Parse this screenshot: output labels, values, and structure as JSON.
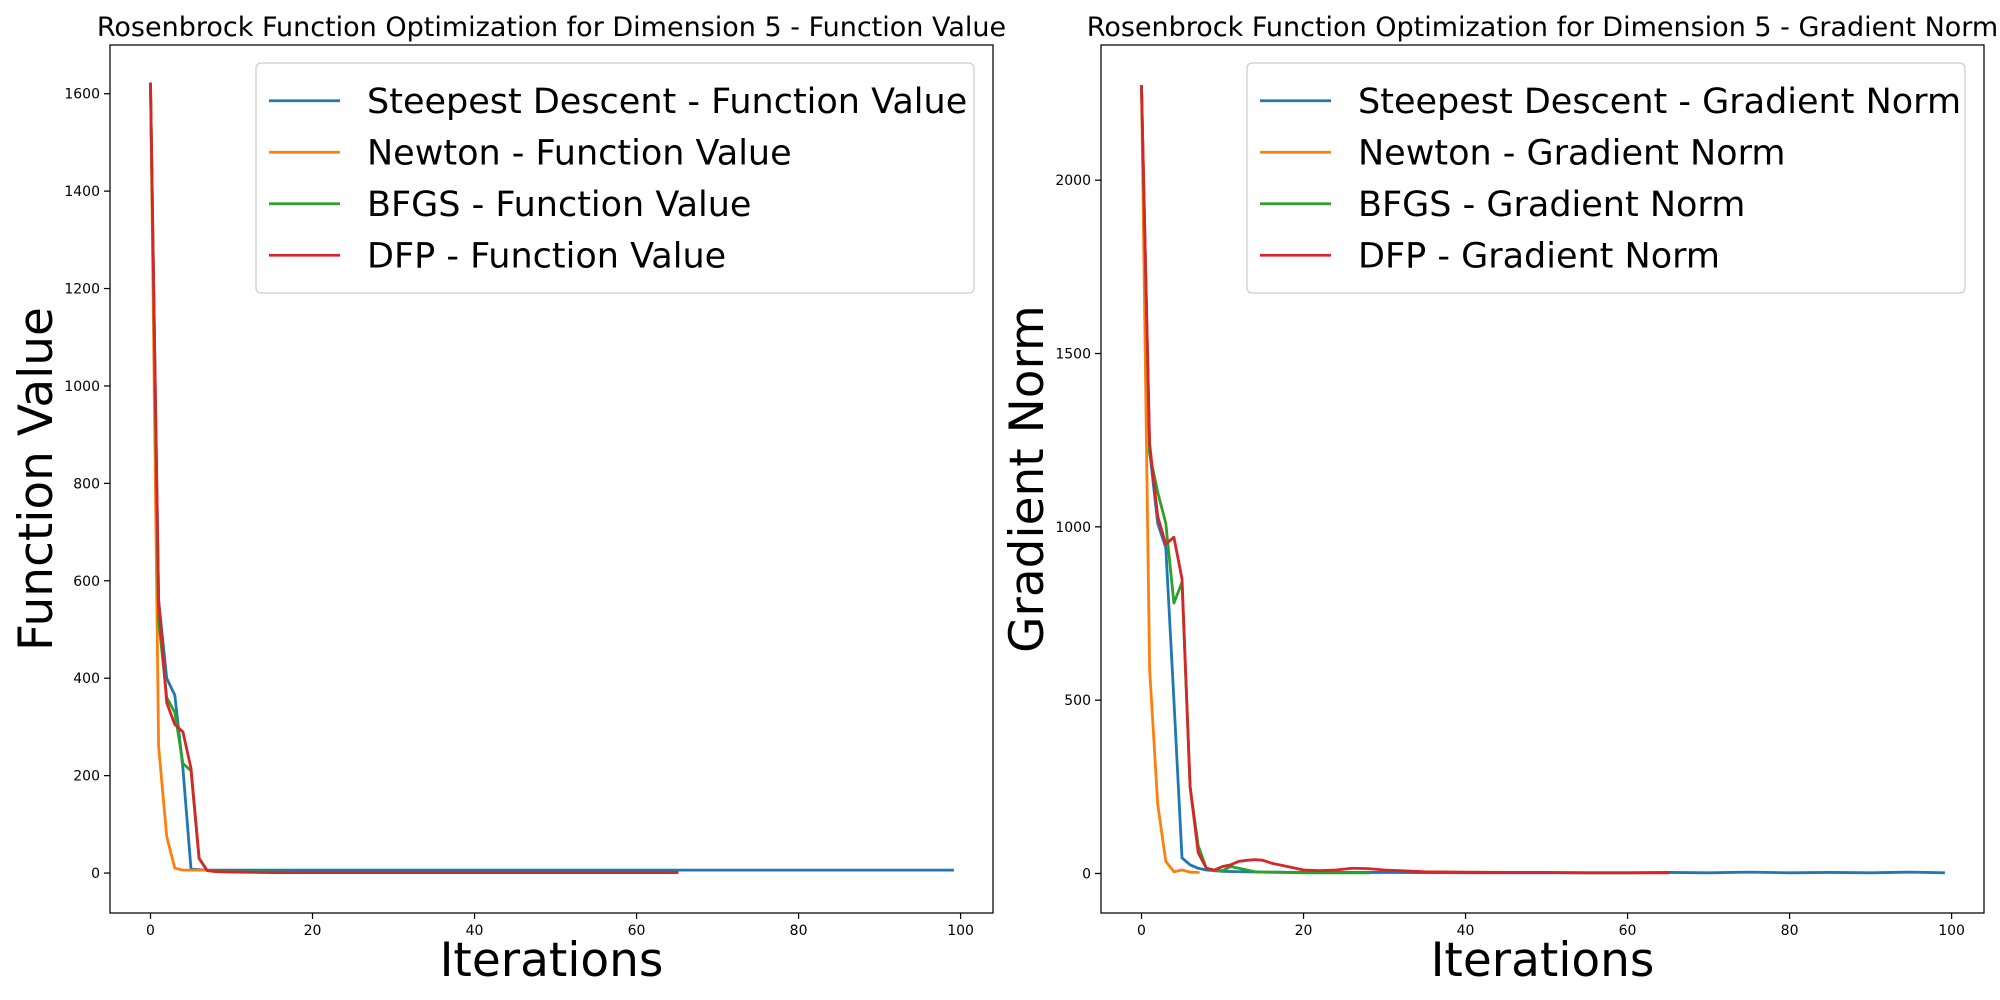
{
  "chart_data": [
    {
      "type": "line",
      "title": "Rosenbrock Function Optimization for Dimension 5 - Function Value",
      "xlabel": "Iterations",
      "ylabel": "Function Value",
      "xlim": [
        -5,
        104
      ],
      "ylim": [
        -82,
        1700
      ],
      "xticks": [
        0,
        20,
        40,
        60,
        80,
        100
      ],
      "yticks": [
        0,
        200,
        400,
        600,
        800,
        1000,
        1200,
        1400,
        1600
      ],
      "grid": false,
      "legend_position": "top-right",
      "series": [
        {
          "name": "Steepest Descent - Function Value",
          "color": "#1f77b4",
          "x": [
            0,
            1,
            2,
            3,
            4,
            5,
            6,
            7,
            8,
            10,
            20,
            40,
            60,
            80,
            99
          ],
          "y": [
            1620,
            560,
            400,
            365,
            215,
            8,
            7,
            6,
            6,
            6,
            6,
            6,
            6,
            6,
            6
          ]
        },
        {
          "name": "Newton - Function Value",
          "color": "#ff7f0e",
          "x": [
            0,
            1,
            2,
            3,
            4,
            5,
            6,
            7
          ],
          "y": [
            1620,
            260,
            75,
            10,
            6,
            6,
            6,
            6
          ]
        },
        {
          "name": "BFGS - Function Value",
          "color": "#2ca02c",
          "x": [
            0,
            1,
            2,
            3,
            4,
            5,
            6,
            7,
            8,
            10,
            15,
            20,
            25,
            28
          ],
          "y": [
            1620,
            520,
            360,
            330,
            225,
            210,
            30,
            5,
            4,
            3,
            2,
            1,
            1,
            1
          ]
        },
        {
          "name": "DFP - Function Value",
          "color": "#d62728",
          "x": [
            0,
            1,
            2,
            3,
            4,
            5,
            6,
            7,
            8,
            10,
            15,
            20,
            30,
            40,
            50,
            60,
            65
          ],
          "y": [
            1620,
            560,
            350,
            305,
            290,
            215,
            30,
            5,
            3,
            2,
            1,
            1,
            1,
            1,
            1,
            1,
            1
          ]
        }
      ]
    },
    {
      "type": "line",
      "title": "Rosenbrock Function Optimization for Dimension 5 - Gradient Norm",
      "xlabel": "Iterations",
      "ylabel": "Gradient Norm",
      "xlim": [
        -5,
        104
      ],
      "ylim": [
        -114,
        2390
      ],
      "xticks": [
        0,
        20,
        40,
        60,
        80,
        100
      ],
      "yticks": [
        0,
        500,
        1000,
        1500,
        2000
      ],
      "grid": false,
      "legend_position": "top-right",
      "series": [
        {
          "name": "Steepest Descent - Gradient Norm",
          "color": "#1f77b4",
          "x": [
            0,
            1,
            2,
            3,
            4,
            5,
            6,
            7,
            8,
            10,
            15,
            20,
            30,
            40,
            50,
            60,
            65,
            70,
            75,
            80,
            85,
            90,
            95,
            99
          ],
          "y": [
            2270,
            1220,
            1010,
            940,
            500,
            45,
            25,
            15,
            10,
            6,
            4,
            3,
            3,
            2,
            2,
            2,
            3,
            2,
            4,
            2,
            3,
            2,
            4,
            2
          ]
        },
        {
          "name": "Newton - Gradient Norm",
          "color": "#ff7f0e",
          "x": [
            0,
            1,
            2,
            3,
            4,
            5,
            6,
            7
          ],
          "y": [
            2270,
            590,
            200,
            35,
            5,
            10,
            4,
            3
          ]
        },
        {
          "name": "BFGS - Gradient Norm",
          "color": "#2ca02c",
          "x": [
            0,
            1,
            2,
            3,
            4,
            5,
            6,
            7,
            8,
            9,
            10,
            11,
            12,
            13,
            14,
            15,
            18,
            20,
            25,
            28
          ],
          "y": [
            2270,
            1210,
            1100,
            1010,
            780,
            840,
            250,
            80,
            15,
            8,
            8,
            20,
            15,
            10,
            5,
            4,
            3,
            2,
            2,
            2
          ]
        },
        {
          "name": "DFP - Gradient Norm",
          "color": "#d62728",
          "x": [
            0,
            1,
            2,
            3,
            4,
            5,
            6,
            7,
            8,
            9,
            10,
            11,
            12,
            13,
            14,
            15,
            16,
            18,
            20,
            22,
            24,
            26,
            28,
            30,
            35,
            40,
            45,
            50,
            55,
            60,
            65
          ],
          "y": [
            2270,
            1240,
            1030,
            950,
            970,
            850,
            250,
            60,
            15,
            10,
            20,
            25,
            35,
            38,
            40,
            38,
            30,
            20,
            10,
            8,
            10,
            15,
            14,
            10,
            5,
            4,
            3,
            3,
            2,
            2,
            2
          ]
        }
      ]
    }
  ]
}
